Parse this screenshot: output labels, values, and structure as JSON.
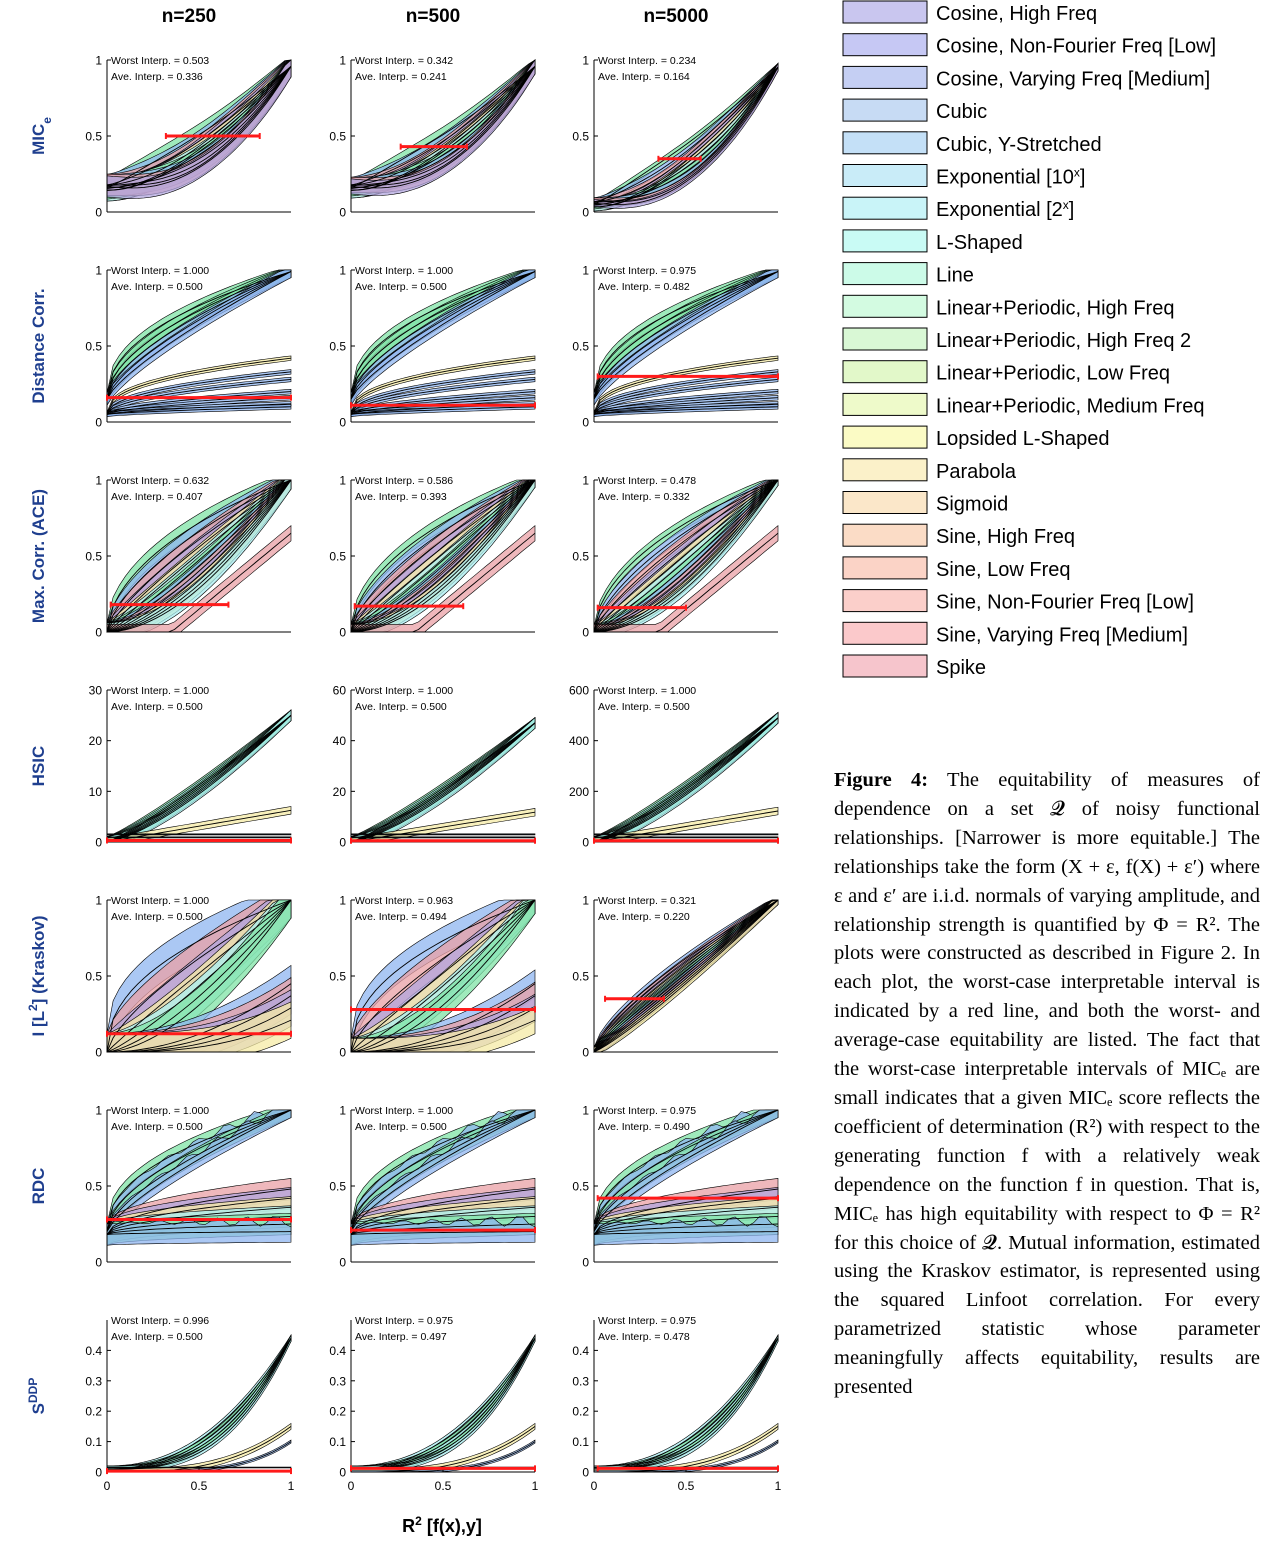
{
  "columns": [
    "n=250",
    "n=500",
    "n=5000"
  ],
  "rows": [
    {
      "label": "MIC",
      "label_sub": "e",
      "label_sup": "",
      "yticks": [
        "0",
        "0.5",
        "1"
      ],
      "ylim": [
        0,
        1
      ],
      "panels": [
        {
          "worst": "Worst Interp. = 0.503",
          "ave": "Ave.   Interp. = 0.336",
          "red_x": [
            0.32,
            0.83
          ],
          "red_y": 0.5
        },
        {
          "worst": "Worst Interp. = 0.342",
          "ave": "Ave.   Interp. = 0.241",
          "red_x": [
            0.27,
            0.63
          ],
          "red_y": 0.43
        },
        {
          "worst": "Worst Interp. = 0.234",
          "ave": "Ave.   Interp. = 0.164",
          "red_x": [
            0.35,
            0.58
          ],
          "red_y": 0.35
        }
      ]
    },
    {
      "label": "Distance Corr.",
      "label_sub": "",
      "label_sup": "",
      "yticks": [
        "0",
        "0.5",
        "1"
      ],
      "ylim": [
        0,
        1
      ],
      "panels": [
        {
          "worst": "Worst Interp. = 1.000",
          "ave": "Ave.   Interp. = 0.500",
          "red_x": [
            0,
            1
          ],
          "red_y": 0.16
        },
        {
          "worst": "Worst Interp. = 1.000",
          "ave": "Ave.   Interp. = 0.500",
          "red_x": [
            0,
            1
          ],
          "red_y": 0.11
        },
        {
          "worst": "Worst Interp. = 0.975",
          "ave": "Ave.   Interp. = 0.482",
          "red_x": [
            0.02,
            1
          ],
          "red_y": 0.3
        }
      ]
    },
    {
      "label": "Max. Corr. (ACE)",
      "label_sub": "",
      "label_sup": "",
      "yticks": [
        "0",
        "0.5",
        "1"
      ],
      "ylim": [
        0,
        1
      ],
      "panels": [
        {
          "worst": "Worst Interp. = 0.632",
          "ave": "Ave.   Interp. = 0.407",
          "red_x": [
            0.02,
            0.66
          ],
          "red_y": 0.18
        },
        {
          "worst": "Worst Interp. = 0.586",
          "ave": "Ave.   Interp. = 0.393",
          "red_x": [
            0.02,
            0.61
          ],
          "red_y": 0.17
        },
        {
          "worst": "Worst Interp. = 0.478",
          "ave": "Ave.   Interp. = 0.332",
          "red_x": [
            0.02,
            0.5
          ],
          "red_y": 0.16
        }
      ]
    },
    {
      "label": "HSIC",
      "label_sub": "",
      "label_sup": "",
      "panels": [
        {
          "worst": "Worst Interp. = 1.000",
          "ave": "Ave.   Interp. = 0.500",
          "red_x": [
            0,
            1
          ],
          "red_y": 0.3,
          "yticks": [
            "0",
            "10",
            "20",
            "30"
          ],
          "ylim": [
            0,
            30
          ],
          "scale": 25
        },
        {
          "worst": "Worst Interp. = 1.000",
          "ave": "Ave.   Interp. = 0.500",
          "red_x": [
            0,
            1
          ],
          "red_y": 0.5,
          "yticks": [
            "0",
            "20",
            "40",
            "60"
          ],
          "ylim": [
            0,
            60
          ],
          "scale": 47
        },
        {
          "worst": "Worst Interp. = 1.000",
          "ave": "Ave.   Interp. = 0.500",
          "red_x": [
            0,
            1
          ],
          "red_y": 5,
          "yticks": [
            "0",
            "200",
            "400",
            "600"
          ],
          "ylim": [
            0,
            600
          ],
          "scale": 490
        }
      ]
    },
    {
      "label": "I [L",
      "label_sub": "",
      "label_sup": "2",
      "label_tail": "] (Kraskov)",
      "yticks": [
        "0",
        "0.5",
        "1"
      ],
      "ylim": [
        0,
        1
      ],
      "panels": [
        {
          "worst": "Worst Interp. = 1.000",
          "ave": "Ave.   Interp. = 0.500",
          "red_x": [
            0,
            1
          ],
          "red_y": 0.12
        },
        {
          "worst": "Worst Interp. = 0.963",
          "ave": "Ave.   Interp. = 0.494",
          "red_x": [
            0,
            1
          ],
          "red_y": 0.28
        },
        {
          "worst": "Worst Interp. = 0.321",
          "ave": "Ave.   Interp. = 0.220",
          "red_x": [
            0.06,
            0.38
          ],
          "red_y": 0.35
        }
      ]
    },
    {
      "label": "RDC",
      "label_sub": "",
      "label_sup": "",
      "yticks": [
        "0",
        "0.5",
        "1"
      ],
      "ylim": [
        0,
        1
      ],
      "panels": [
        {
          "worst": "Worst Interp. = 1.000",
          "ave": "Ave.   Interp. = 0.500",
          "red_x": [
            0,
            1
          ],
          "red_y": 0.28
        },
        {
          "worst": "Worst Interp. = 1.000",
          "ave": "Ave.   Interp. = 0.500",
          "red_x": [
            0,
            1
          ],
          "red_y": 0.21
        },
        {
          "worst": "Worst Interp. = 0.975",
          "ave": "Ave.   Interp. = 0.490",
          "red_x": [
            0.02,
            1
          ],
          "red_y": 0.42
        }
      ]
    },
    {
      "label": "S",
      "label_sub": "",
      "label_sup": "DDP",
      "yticks": [
        "0",
        "0.1",
        "0.2",
        "0.3",
        "0.4"
      ],
      "ylim": [
        0,
        0.5
      ],
      "panels": [
        {
          "worst": "Worst Interp. = 0.996",
          "ave": "Ave.   Interp. = 0.500",
          "red_x": [
            0,
            1
          ],
          "red_y": 0.003
        },
        {
          "worst": "Worst Interp. = 0.975",
          "ave": "Ave.   Interp. = 0.497",
          "red_x": [
            0,
            1
          ],
          "red_y": 0.012
        },
        {
          "worst": "Worst Interp. = 0.975",
          "ave": "Ave.   Interp. = 0.478",
          "red_x": [
            0.02,
            1
          ],
          "red_y": 0.012
        }
      ]
    }
  ],
  "xticks": [
    "0",
    "0.5",
    "1"
  ],
  "xlabel": "R",
  "xlabel_sup": "2",
  "xlabel_tail": " [f(x),y]",
  "legend": [
    {
      "label": "Cosine, High Freq",
      "color": "#c9c6ef"
    },
    {
      "label": "Cosine, Non-Fourier Freq [Low]",
      "color": "#c6c8f4"
    },
    {
      "label": "Cosine, Varying Freq [Medium]",
      "color": "#c5cff3"
    },
    {
      "label": "Cubic",
      "color": "#c7dbf4"
    },
    {
      "label": "Cubic, Y-Stretched",
      "color": "#c4e0f7"
    },
    {
      "label": "Exponential [10",
      "sup": "x",
      "tail": "]",
      "color": "#c9ecf8"
    },
    {
      "label": "Exponential [2",
      "sup": "x",
      "tail": "]",
      "color": "#c9f4f8"
    },
    {
      "label": "L-Shaped",
      "color": "#c9fbf5"
    },
    {
      "label": "Line",
      "color": "#ccfbe8"
    },
    {
      "label": "Linear+Periodic, High Freq",
      "color": "#d3fbe1"
    },
    {
      "label": "Linear+Periodic, High Freq 2",
      "color": "#d9f8d5"
    },
    {
      "label": "Linear+Periodic, Low Freq",
      "color": "#e2f8c9"
    },
    {
      "label": "Linear+Periodic, Medium Freq",
      "color": "#eefaca"
    },
    {
      "label": "Lopsided L-Shaped",
      "color": "#fbfbc5"
    },
    {
      "label": "Parabola",
      "color": "#fbf1c9"
    },
    {
      "label": "Sigmoid",
      "color": "#fbe7c9"
    },
    {
      "label": "Sine, High Freq",
      "color": "#fbdcc6"
    },
    {
      "label": "Sine, Low Freq",
      "color": "#fbd3c6"
    },
    {
      "label": "Sine, Non-Fourier Freq [Low]",
      "color": "#fbcfca"
    },
    {
      "label": "Sine, Varying Freq [Medium]",
      "color": "#fbc9cb"
    },
    {
      "label": "Spike",
      "color": "#f6c5cc"
    }
  ],
  "colors": {
    "title_blue": "#1f3f8f",
    "red_line": "#ff1a1a",
    "band_green": "#7fe3a6",
    "band_blue": "#8fb6f0",
    "band_red": "#e9a0a6",
    "band_purple": "#b2a6de",
    "band_yellow": "#f5eba6",
    "band_cyan": "#a9eef0"
  },
  "caption": {
    "label": "Figure 4:",
    "text": "The equitability of measures of dependence on a set 𝓠 of noisy functional relationships. [Narrower is more equitable.] The relationships take the form (X + ε, f(X) + ε′) where ε and ε′ are i.i.d. normals of varying amplitude, and relationship strength is quantified by Φ = R². The plots were constructed as described in Figure 2. In each plot, the worst-case interpretable interval is indicated by a red line, and both the worst- and average-case equitability are listed. The fact that the worst-case interpretable intervals of MICₑ are small indicates that a given MICₑ score reflects the coefficient of determination (R²) with respect to the generating function f with a relatively weak dependence on the function f in question. That is, MICₑ has high equitability with respect to Φ = R² for this choice of 𝓠. Mutual information, estimated using the Kraskov estimator, is represented using the squared Linfoot correlation. For every parametrized statistic whose parameter meaningfully affects equitability, results are presented"
  }
}
